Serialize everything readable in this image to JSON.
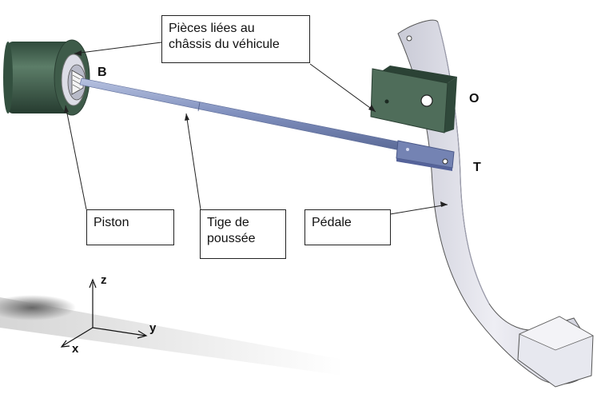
{
  "labels": {
    "chassis": "Pièces liées au\nchâssis du véhicule",
    "piston": "Piston",
    "tige": "Tige de\npoussée",
    "pedale": "Pédale"
  },
  "points": {
    "B": "B",
    "O": "O",
    "T": "T"
  },
  "axes": {
    "x": "x",
    "y": "y",
    "z": "z"
  },
  "colors": {
    "chassis_green": "#3e5b49",
    "rod_blue": "#8c9bc4",
    "pedal_grey": "#e3e4ec"
  }
}
